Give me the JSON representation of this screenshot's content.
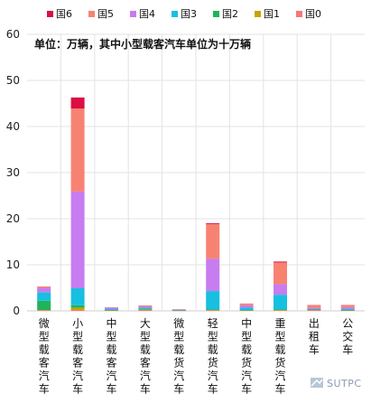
{
  "chart_data": {
    "type": "bar",
    "stacked": true,
    "annotation": "单位：万辆，其中小型载客汽车单位为十万辆",
    "categories": [
      "微型载客汽车",
      "小型载客汽车",
      "中型载客汽车",
      "大型载客汽车",
      "微型载货汽车",
      "轻型载货汽车",
      "中型载货汽车",
      "重型载货汽车",
      "出租车",
      "公交车"
    ],
    "ylim": [
      0,
      60
    ],
    "yticks": [
      0,
      10,
      20,
      30,
      40,
      50,
      60
    ],
    "grid": true,
    "legend_position": "top",
    "series": [
      {
        "name": "国0",
        "color": "#f8767d",
        "values": [
          0.1,
          0.2,
          0.1,
          0.2,
          0.05,
          0.1,
          0.1,
          0.1,
          0.2,
          0.1
        ]
      },
      {
        "name": "国1",
        "color": "#c9a400",
        "values": [
          0.1,
          0.5,
          0.05,
          0.1,
          0.05,
          0.1,
          0.05,
          0.1,
          0.05,
          0.05
        ]
      },
      {
        "name": "国2",
        "color": "#1fb45a",
        "values": [
          2.0,
          0.5,
          0.05,
          0.1,
          0.05,
          0.1,
          0.05,
          0.1,
          0.05,
          0.05
        ]
      },
      {
        "name": "国3",
        "color": "#17bfe0",
        "values": [
          1.8,
          3.7,
          0.2,
          0.3,
          0.05,
          4.0,
          0.5,
          3.2,
          0.1,
          0.2
        ]
      },
      {
        "name": "国4",
        "color": "#c77cf0",
        "values": [
          1.0,
          21.0,
          0.3,
          0.3,
          0.1,
          7.0,
          0.5,
          2.3,
          0.3,
          0.4
        ]
      },
      {
        "name": "国5",
        "color": "#f88272",
        "values": [
          0.3,
          18.0,
          0.1,
          0.2,
          0.05,
          7.5,
          0.4,
          4.7,
          0.6,
          0.5
        ]
      },
      {
        "name": "国6",
        "color": "#dc0e43",
        "values": [
          0.0,
          2.4,
          0.0,
          0.0,
          0.0,
          0.2,
          0.0,
          0.2,
          0.0,
          0.0
        ]
      }
    ]
  },
  "watermark": {
    "text": "SUTPC"
  }
}
